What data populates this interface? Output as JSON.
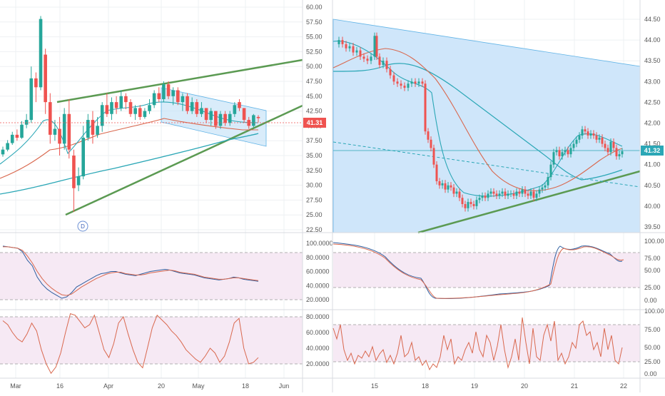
{
  "chart_data": [
    {
      "type": "candlestick",
      "panel": "left-daily",
      "x_ticks": [
        "Mar",
        "16",
        "Apr",
        "20",
        "May",
        "18",
        "Jun"
      ],
      "y_ticks": [
        "60.00",
        "57.50",
        "55.00",
        "52.50",
        "50.00",
        "47.50",
        "45.00",
        "42.50",
        "40.00",
        "37.50",
        "35.00",
        "32.50",
        "30.00",
        "27.50",
        "25.00",
        "22.50"
      ],
      "ylim": [
        22.5,
        60
      ],
      "last_price": "41.31",
      "interval_badge": "D",
      "candles": [
        {
          "o": 35.2,
          "c": 36.0,
          "h": 36.5,
          "l": 34.8
        },
        {
          "o": 36.0,
          "c": 37.1,
          "h": 37.6,
          "l": 35.7
        },
        {
          "o": 37.1,
          "c": 38.5,
          "h": 39.0,
          "l": 36.8
        },
        {
          "o": 38.5,
          "c": 38.0,
          "h": 39.4,
          "l": 37.5
        },
        {
          "o": 38.0,
          "c": 40.2,
          "h": 40.8,
          "l": 37.8
        },
        {
          "o": 40.2,
          "c": 41.0,
          "h": 42.0,
          "l": 39.6
        },
        {
          "o": 41.0,
          "c": 48.0,
          "h": 50.0,
          "l": 40.5
        },
        {
          "o": 48.0,
          "c": 46.5,
          "h": 49.0,
          "l": 44.0
        },
        {
          "o": 46.5,
          "c": 58.0,
          "h": 58.5,
          "l": 46.0
        },
        {
          "o": 52.0,
          "c": 44.0,
          "h": 53.0,
          "l": 42.0
        },
        {
          "o": 44.0,
          "c": 38.5,
          "h": 45.5,
          "l": 37.0
        },
        {
          "o": 38.5,
          "c": 39.5,
          "h": 41.0,
          "l": 37.5
        },
        {
          "o": 39.5,
          "c": 37.0,
          "h": 41.5,
          "l": 35.0
        },
        {
          "o": 37.0,
          "c": 42.0,
          "h": 43.0,
          "l": 36.0
        },
        {
          "o": 42.0,
          "c": 36.0,
          "h": 44.5,
          "l": 34.5
        },
        {
          "o": 35.0,
          "c": 29.5,
          "h": 36.0,
          "l": 25.5
        },
        {
          "o": 30.0,
          "c": 31.5,
          "h": 33.0,
          "l": 29.0
        },
        {
          "o": 31.5,
          "c": 38.0,
          "h": 40.0,
          "l": 31.0
        },
        {
          "o": 38.0,
          "c": 41.0,
          "h": 42.0,
          "l": 37.5
        },
        {
          "o": 41.0,
          "c": 38.5,
          "h": 42.5,
          "l": 37.0
        },
        {
          "o": 38.5,
          "c": 40.0,
          "h": 41.5,
          "l": 38.0
        },
        {
          "o": 40.0,
          "c": 43.5,
          "h": 44.0,
          "l": 39.0
        },
        {
          "o": 43.5,
          "c": 42.0,
          "h": 45.5,
          "l": 41.5
        },
        {
          "o": 42.0,
          "c": 44.0,
          "h": 44.8,
          "l": 41.0
        },
        {
          "o": 44.0,
          "c": 43.0,
          "h": 45.0,
          "l": 42.0
        },
        {
          "o": 43.0,
          "c": 45.0,
          "h": 46.0,
          "l": 42.5
        },
        {
          "o": 45.0,
          "c": 44.0,
          "h": 45.5,
          "l": 42.8
        },
        {
          "o": 44.0,
          "c": 42.0,
          "h": 44.5,
          "l": 41.5
        },
        {
          "o": 42.0,
          "c": 43.0,
          "h": 43.5,
          "l": 41.0
        },
        {
          "o": 43.0,
          "c": 41.5,
          "h": 43.5,
          "l": 41.0
        },
        {
          "o": 41.5,
          "c": 42.5,
          "h": 43.0,
          "l": 41.2
        },
        {
          "o": 42.5,
          "c": 43.5,
          "h": 44.5,
          "l": 42.0
        },
        {
          "o": 43.5,
          "c": 45.5,
          "h": 46.0,
          "l": 43.0
        },
        {
          "o": 45.5,
          "c": 44.5,
          "h": 46.5,
          "l": 44.0
        },
        {
          "o": 44.5,
          "c": 47.0,
          "h": 47.5,
          "l": 44.0
        },
        {
          "o": 47.0,
          "c": 45.0,
          "h": 47.5,
          "l": 44.5
        },
        {
          "o": 45.0,
          "c": 46.0,
          "h": 46.5,
          "l": 43.5
        },
        {
          "o": 46.0,
          "c": 44.0,
          "h": 46.5,
          "l": 43.5
        },
        {
          "o": 44.0,
          "c": 45.0,
          "h": 45.5,
          "l": 42.5
        },
        {
          "o": 45.0,
          "c": 42.5,
          "h": 45.5,
          "l": 42.0
        },
        {
          "o": 42.5,
          "c": 44.0,
          "h": 44.8,
          "l": 42.0
        },
        {
          "o": 44.0,
          "c": 42.0,
          "h": 44.5,
          "l": 41.5
        },
        {
          "o": 42.0,
          "c": 43.0,
          "h": 44.0,
          "l": 41.5
        },
        {
          "o": 43.0,
          "c": 41.0,
          "h": 43.0,
          "l": 40.5
        },
        {
          "o": 41.0,
          "c": 42.5,
          "h": 43.0,
          "l": 40.0
        },
        {
          "o": 42.5,
          "c": 40.0,
          "h": 42.5,
          "l": 39.5
        },
        {
          "o": 40.0,
          "c": 42.0,
          "h": 42.5,
          "l": 39.5
        },
        {
          "o": 42.0,
          "c": 40.5,
          "h": 42.5,
          "l": 40.0
        },
        {
          "o": 40.5,
          "c": 42.0,
          "h": 42.5,
          "l": 40.0
        },
        {
          "o": 42.0,
          "c": 43.5,
          "h": 44.0,
          "l": 41.5
        },
        {
          "o": 44.0,
          "c": 43.0,
          "h": 44.5,
          "l": 42.5
        },
        {
          "o": 43.0,
          "c": 41.0,
          "h": 43.0,
          "l": 40.5
        },
        {
          "o": 41.0,
          "c": 40.0,
          "h": 41.5,
          "l": 39.5
        },
        {
          "o": 40.0,
          "c": 41.8,
          "h": 42.0,
          "l": 39.7
        },
        {
          "o": 41.5,
          "c": 41.3,
          "h": 41.8,
          "l": 40.6
        }
      ],
      "osc1": {
        "y_ticks": [
          "100.0000",
          "80.0000",
          "60.0000",
          "40.0000",
          "20.0000"
        ],
        "band": [
          20,
          80
        ],
        "k": [
          96,
          95,
          94,
          93,
          88,
          76,
          68,
          52,
          42,
          35,
          30,
          26,
          22,
          24,
          30,
          38,
          42,
          46,
          50,
          54,
          57,
          58,
          60,
          60,
          58,
          56,
          55,
          54,
          56,
          58,
          60,
          61,
          62,
          63,
          62,
          60,
          58,
          57,
          56,
          55,
          53,
          51,
          50,
          49,
          48,
          49,
          50,
          52,
          51,
          49,
          48,
          47,
          46
        ],
        "d": [
          95,
          95,
          94,
          93,
          90,
          82,
          72,
          60,
          50,
          42,
          36,
          31,
          27,
          26,
          28,
          33,
          38,
          42,
          46,
          50,
          53,
          56,
          58,
          59,
          59,
          57,
          56,
          55,
          55,
          56,
          58,
          59,
          60,
          61,
          62,
          61,
          59,
          58,
          57,
          56,
          54,
          52,
          51,
          50,
          49,
          49,
          50,
          51,
          51,
          50,
          49,
          48,
          47
        ]
      },
      "osc2": {
        "y_ticks": [
          "80.0000",
          "60.0000",
          "40.0000",
          "20.0000"
        ],
        "band": [
          20,
          80
        ],
        "v": [
          75,
          70,
          60,
          52,
          48,
          58,
          72,
          62,
          38,
          20,
          8,
          16,
          34,
          60,
          84,
          82,
          74,
          66,
          70,
          82,
          60,
          38,
          28,
          46,
          72,
          80,
          58,
          38,
          22,
          15,
          40,
          66,
          82,
          76,
          70,
          62,
          56,
          48,
          38,
          32,
          26,
          22,
          30,
          40,
          34,
          22,
          30,
          48,
          72,
          78,
          40,
          20,
          22,
          28
        ]
      }
    },
    {
      "type": "candlestick",
      "panel": "right-intraday",
      "x_ticks": [
        "15",
        "18",
        "19",
        "20",
        "21",
        "22"
      ],
      "y_ticks": [
        "44.50",
        "44.00",
        "43.50",
        "43.00",
        "42.50",
        "42.00",
        "41.50",
        "41.00",
        "40.50",
        "40.00",
        "39.50"
      ],
      "ylim": [
        39.3,
        44.7
      ],
      "last_price": "41.32",
      "osc1": {
        "y_ticks": [
          "100.00",
          "75.00",
          "50.00",
          "25.00",
          "0.00"
        ],
        "band": [
          20,
          80
        ]
      },
      "osc2": {
        "y_ticks": [
          "100.00",
          "75.00",
          "50.00",
          "25.00",
          "0.00"
        ],
        "band": [
          20,
          80
        ]
      }
    }
  ],
  "colors": {
    "up": "#26a69a",
    "down": "#ef5350",
    "trend": "#5b9a52",
    "channel": "#bfe0f7",
    "ma_red": "#d9684e",
    "ma_teal": "#2ba7b6",
    "osc_band": "#f6e9f4"
  }
}
